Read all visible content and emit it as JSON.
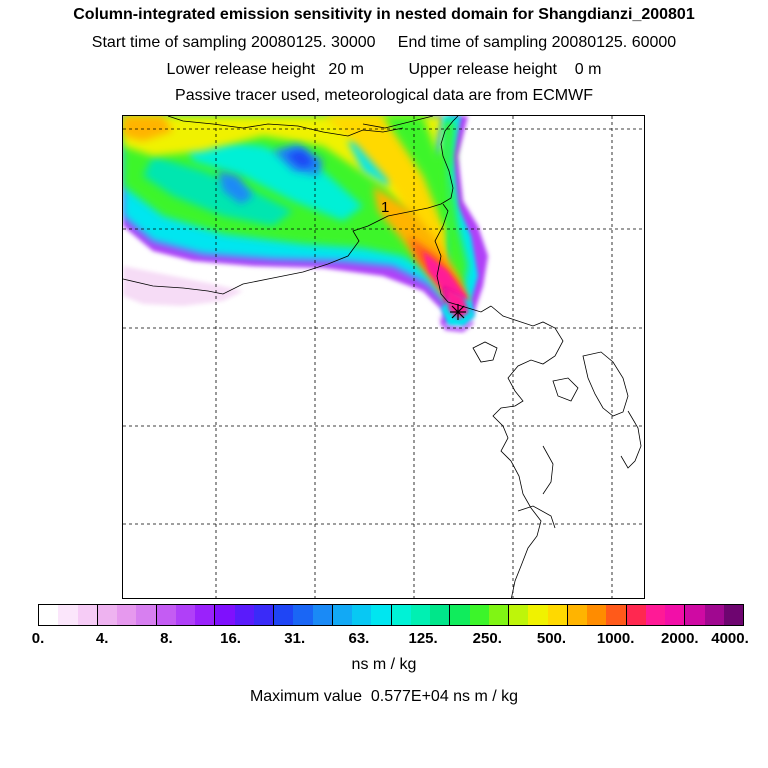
{
  "header": {
    "title": "Column-integrated emission sensitivity in nested domain for Shangdianzi_200801",
    "sampling_line": "Start time of sampling 20080125. 30000     End time of sampling 20080125. 60000",
    "height_line": "Lower release height   20 m          Upper release height    0 m",
    "tracer_line": "Passive tracer used, meteorological data are from ECMWF"
  },
  "map": {
    "marker_label": "1"
  },
  "colorbar": {
    "colors": [
      "#ffffff",
      "#fbe6fb",
      "#f6ccf6",
      "#eeb3f0",
      "#e699ee",
      "#d77ff0",
      "#c45cf3",
      "#b040f8",
      "#9a22fb",
      "#7f10fd",
      "#5a1bfb",
      "#3a2bf8",
      "#1f45f5",
      "#1a66f5",
      "#1a8af6",
      "#12a9f5",
      "#08c8f3",
      "#00e6f0",
      "#00f2d6",
      "#00f0b2",
      "#00e68a",
      "#10ec5c",
      "#3cf52a",
      "#80f514",
      "#bef50a",
      "#f0f200",
      "#ffd900",
      "#ffb400",
      "#ff8c00",
      "#ff5a1a",
      "#ff2850",
      "#ff1a96",
      "#f20fa8",
      "#cf0aa3",
      "#a00890",
      "#6e0570"
    ],
    "tick_labels": [
      "0.",
      "4.",
      "8.",
      "16.",
      "31.",
      "63.",
      "125.",
      "250.",
      "500.",
      "1000.",
      "2000.",
      "4000."
    ],
    "unit": "ns m / kg"
  },
  "footer": {
    "max_value": "Maximum value  0.577E+04 ns m / kg"
  }
}
